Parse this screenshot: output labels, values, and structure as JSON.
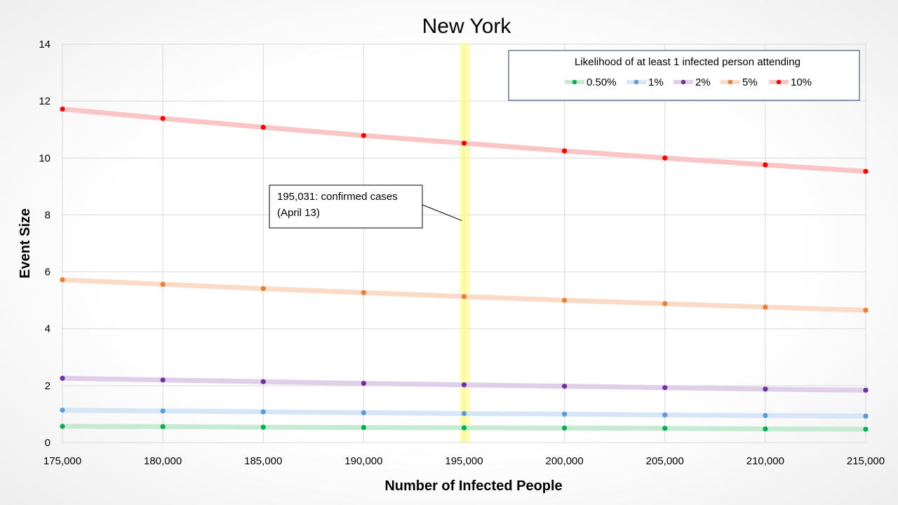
{
  "chart_data": {
    "type": "line",
    "title": "New York",
    "xlabel": "Number of Infected People",
    "ylabel": "Event Size",
    "xlim": [
      175000,
      215000
    ],
    "ylim": [
      0,
      14
    ],
    "x": [
      175000,
      180000,
      185000,
      190000,
      195000,
      200000,
      205000,
      210000,
      215000
    ],
    "x_tick_labels": [
      "175,000",
      "180,000",
      "185,000",
      "190,000",
      "195,000",
      "200,000",
      "205,000",
      "210,000",
      "215,000"
    ],
    "y_ticks": [
      0,
      2,
      4,
      6,
      8,
      10,
      12,
      14
    ],
    "y_tick_labels": [
      "0",
      "2",
      "4",
      "6",
      "8",
      "10",
      "12",
      "14"
    ],
    "grid": true,
    "legend": {
      "title": "Likelihood of at least 1 infected person attending",
      "placement": "top-right"
    },
    "series": [
      {
        "name": "0.50%",
        "marker_color": "#00b050",
        "line_color": "#c6ebd2",
        "values": [
          0.57,
          0.56,
          0.54,
          0.53,
          0.52,
          0.51,
          0.5,
          0.48,
          0.47
        ]
      },
      {
        "name": "1%",
        "marker_color": "#5b9bd5",
        "line_color": "#d6e6f6",
        "values": [
          1.14,
          1.11,
          1.08,
          1.05,
          1.02,
          1.0,
          0.97,
          0.95,
          0.93
        ]
      },
      {
        "name": "2%",
        "marker_color": "#7030a0",
        "line_color": "#dfcfe9",
        "values": [
          2.26,
          2.2,
          2.14,
          2.08,
          2.03,
          1.98,
          1.93,
          1.88,
          1.84
        ]
      },
      {
        "name": "5%",
        "marker_color": "#ed7d31",
        "line_color": "#fadbc8",
        "values": [
          5.72,
          5.56,
          5.41,
          5.27,
          5.13,
          5.0,
          4.88,
          4.76,
          4.65
        ]
      },
      {
        "name": "10%",
        "marker_color": "#ff0000",
        "line_color": "#fbc5c5",
        "values": [
          11.72,
          11.39,
          11.08,
          10.79,
          10.52,
          10.25,
          10.0,
          9.76,
          9.53
        ]
      }
    ],
    "highlight": {
      "x": 195031,
      "color": "#ffff66"
    },
    "annotations": [
      {
        "line1": "195,031: confirmed cases",
        "line2": "(April 13)",
        "x": 195031,
        "y": 7.8
      }
    ]
  }
}
